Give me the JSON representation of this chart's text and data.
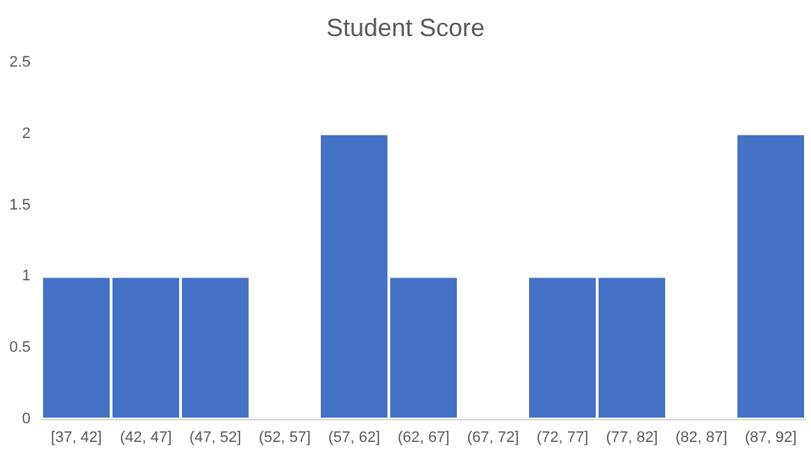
{
  "chart_data": {
    "type": "bar",
    "title": "Student Score",
    "categories": [
      "[37, 42]",
      "(42, 47]",
      "(47, 52]",
      "(52, 57]",
      "(57, 62]",
      "(62, 67]",
      "(67, 72]",
      "(72, 77]",
      "(77, 82]",
      "(82, 87]",
      "(87, 92]"
    ],
    "values": [
      1,
      1,
      1,
      0,
      2,
      1,
      0,
      1,
      1,
      0,
      2
    ],
    "color": "#4472c4",
    "ylim": [
      0,
      2.5
    ],
    "yticks": [
      0,
      0.5,
      1,
      1.5,
      2,
      2.5
    ],
    "grid": false
  }
}
